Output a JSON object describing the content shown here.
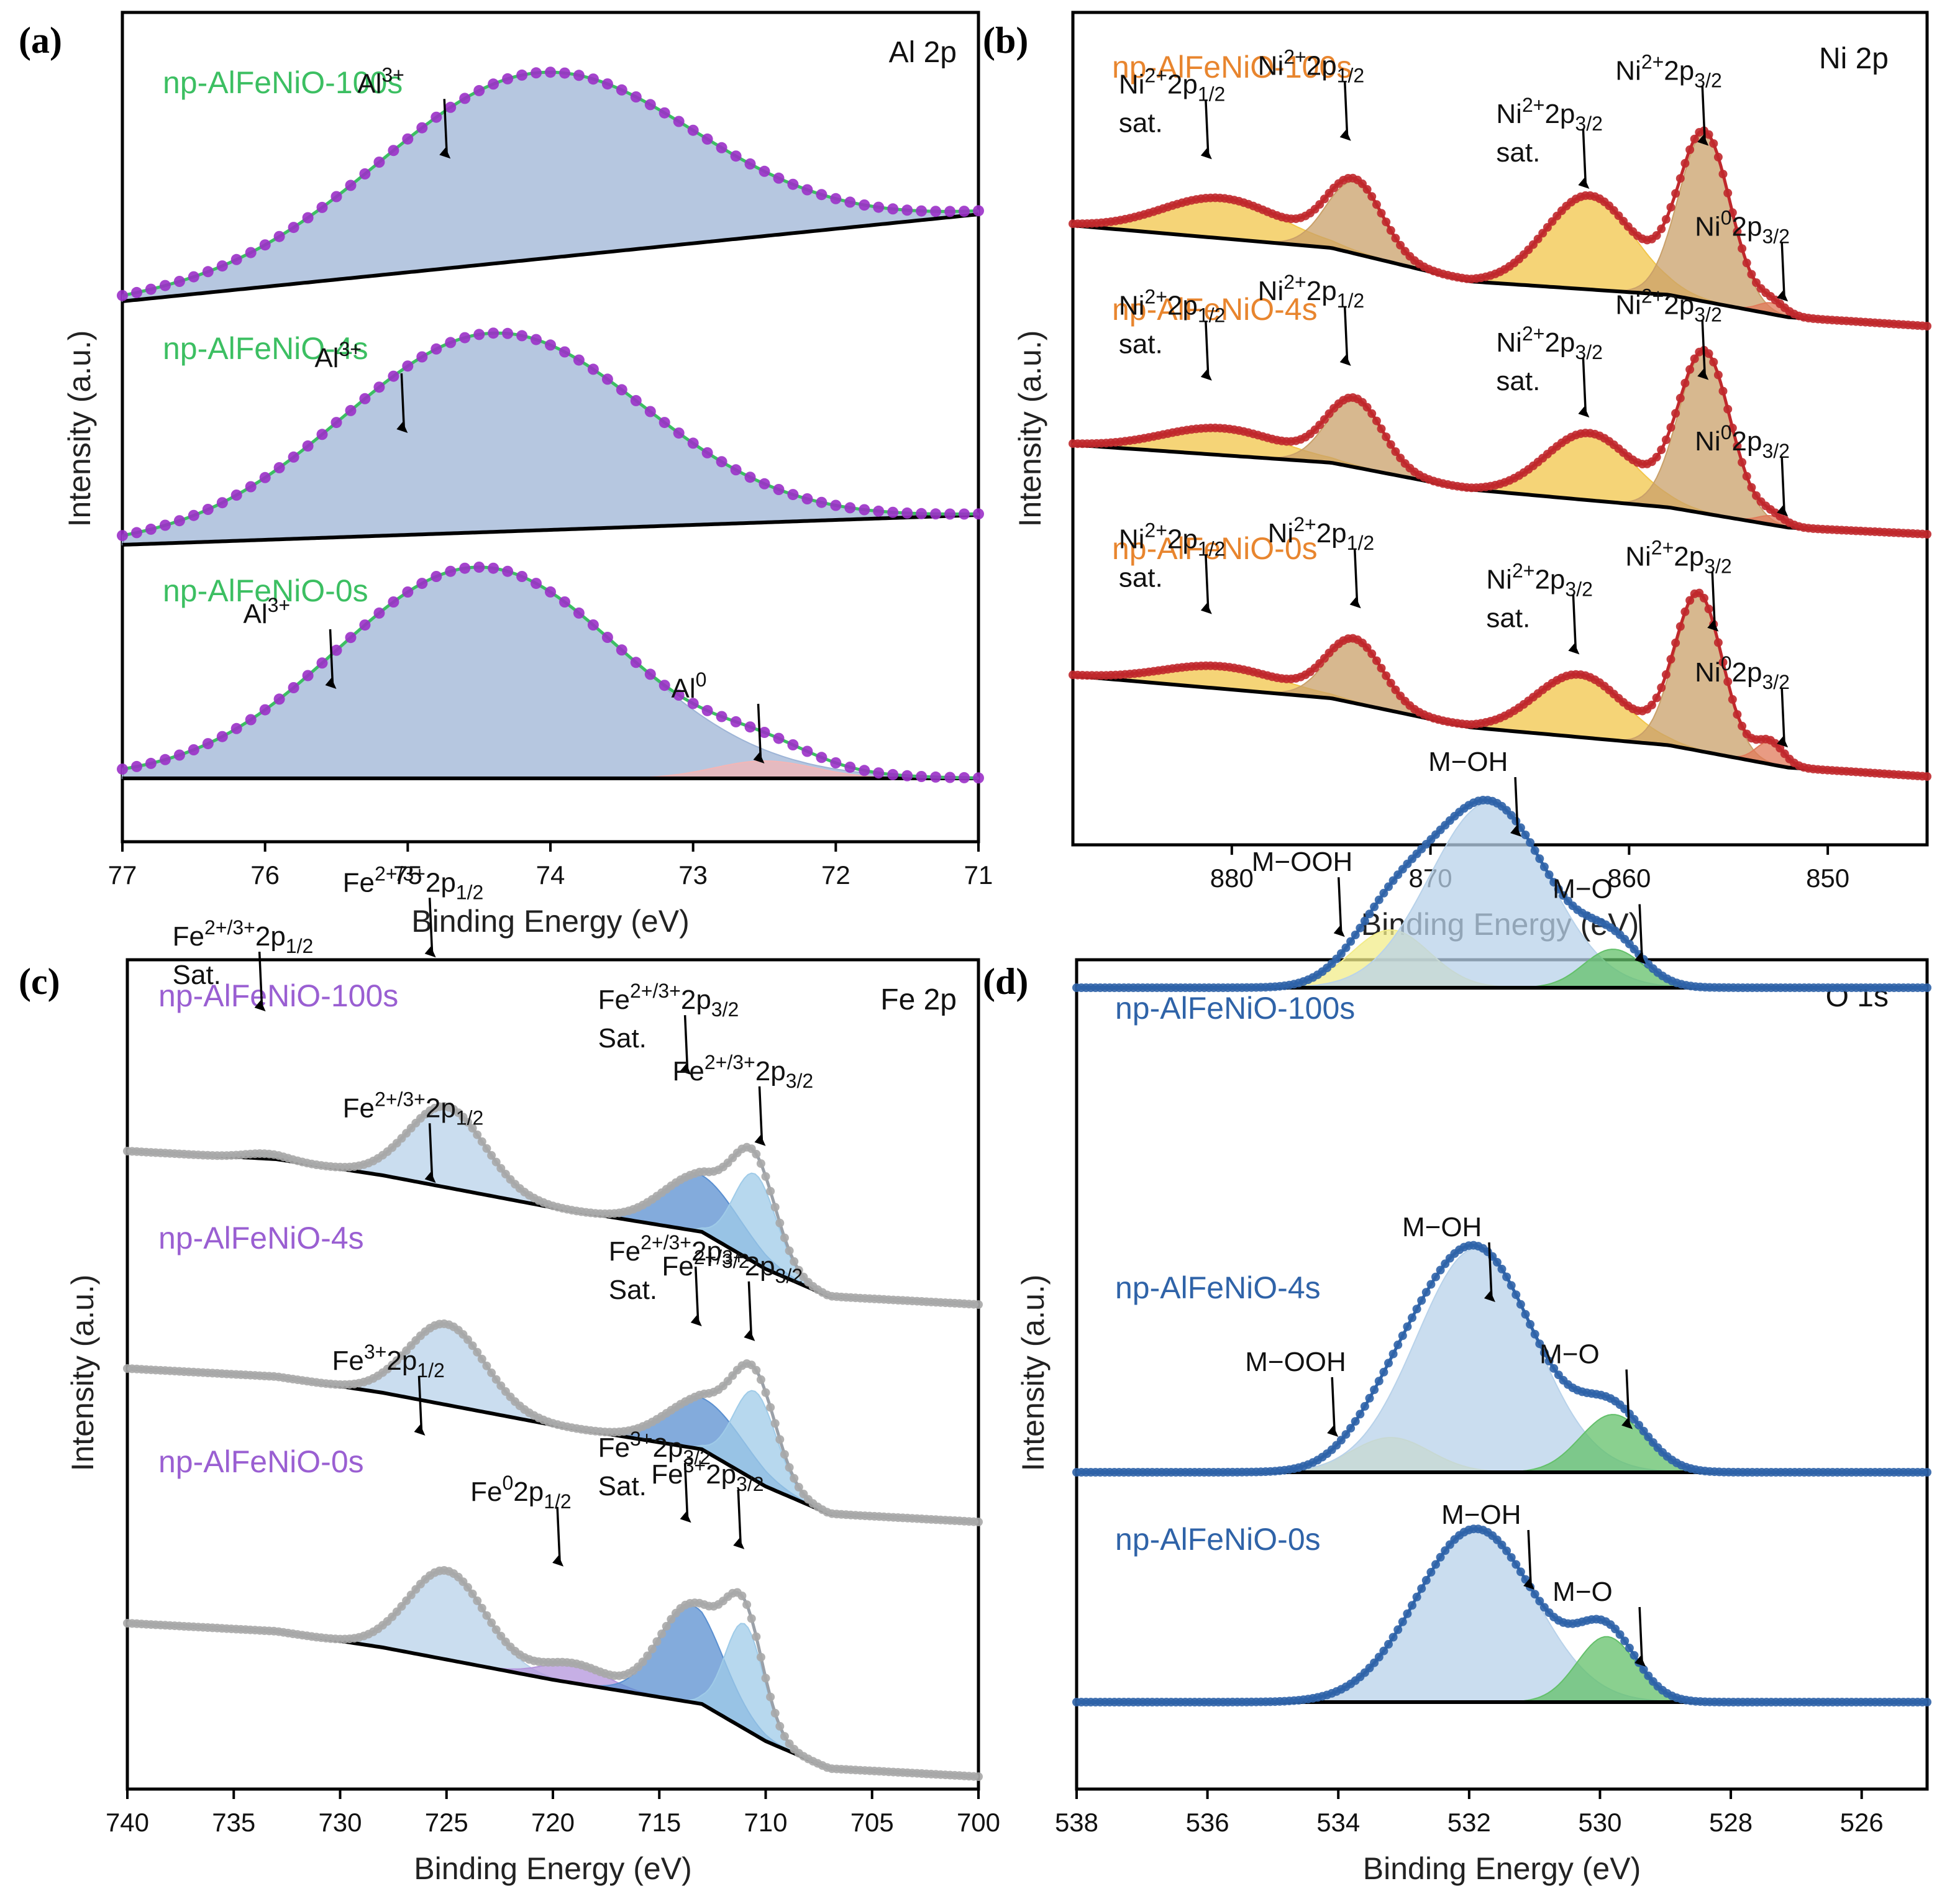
{
  "panel_labels": [
    "(a)",
    "(b)",
    "(c)",
    "(d)"
  ],
  "chart_data": [
    {
      "type": "line",
      "panel": "(a)",
      "title": "Al 2p",
      "xlabel": "Binding Energy (eV)",
      "ylabel": "Intensity (a.u.)",
      "xlim": [
        77,
        71
      ],
      "xticks": [
        77,
        76,
        75,
        74,
        73,
        72,
        71
      ],
      "marker_color": "#9b30c8",
      "fit_color": "#3cbf62",
      "label_color": "#3cbf62",
      "series": [
        {
          "name": "np-AlFeNiO-100s",
          "offset": 2.0,
          "baseline": [
            [
              77,
              0.0
            ],
            [
              71,
              0.35
            ]
          ],
          "components": [
            {
              "label": "Al3+",
              "center": 74.1,
              "height": 0.75,
              "width": 1.1,
              "color": "#9db4d6"
            }
          ],
          "annotations": [
            {
              "label": "Al3+",
              "x": 74.7,
              "y": 0.48
            }
          ]
        },
        {
          "name": "np-AlFeNiO-4s",
          "offset": 1.0,
          "baseline": [
            [
              77,
              0.0
            ],
            [
              71,
              0.12
            ]
          ],
          "components": [
            {
              "label": "Al3+",
              "center": 74.4,
              "height": 0.8,
              "width": 1.05,
              "color": "#9db4d6"
            }
          ],
          "annotations": [
            {
              "label": "Al3+",
              "x": 75.0,
              "y": 0.45
            }
          ]
        },
        {
          "name": "np-AlFeNiO-0s",
          "offset": 0.0,
          "baseline": [
            [
              77,
              0.0
            ],
            [
              71,
              0.0
            ]
          ],
          "components": [
            {
              "label": "Al3+",
              "center": 74.5,
              "height": 0.85,
              "width": 1.0,
              "color": "#9db4d6"
            },
            {
              "label": "Al0",
              "center": 72.5,
              "height": 0.07,
              "width": 0.35,
              "color": "#f4b6b6"
            }
          ],
          "annotations": [
            {
              "label": "Al3+",
              "x": 75.5,
              "y": 0.4
            },
            {
              "label": "Al0",
              "x": 72.5,
              "y": 0.1
            }
          ]
        }
      ]
    },
    {
      "type": "line",
      "panel": "(b)",
      "title": "Ni 2p",
      "xlabel": "Binding Energy (eV)",
      "ylabel": "Intensity (a.u.)",
      "xlim": [
        888,
        845
      ],
      "xticks": [
        880,
        870,
        860,
        850
      ],
      "marker_color": "#c0282c",
      "fit_color": "#c0282c",
      "label_color": "#e8852e",
      "series": [
        {
          "name": "np-AlFeNiO-100s",
          "offset": 2.0,
          "baseline": [
            [
              888,
              0.45
            ],
            [
              875,
              0.35
            ],
            [
              868,
              0.2
            ],
            [
              858,
              0.14
            ],
            [
              852,
              0.04
            ],
            [
              845,
              0.0
            ]
          ],
          "components": [
            {
              "label": "Ni2+ 2p1/2 sat.",
              "center": 880.5,
              "height": 0.18,
              "width": 3.0,
              "color": "#f2c64a"
            },
            {
              "label": "Ni2+ 2p1/2",
              "center": 873.8,
              "height": 0.32,
              "width": 1.4,
              "color": "#c9a06a"
            },
            {
              "label": "Ni2+ 2p3/2 sat.",
              "center": 862.0,
              "height": 0.42,
              "width": 2.2,
              "color": "#f2c64a"
            },
            {
              "label": "Ni2+ 2p3/2",
              "center": 856.2,
              "height": 0.75,
              "width": 1.3,
              "color": "#c9a06a"
            },
            {
              "label": "Ni0 2p3/2",
              "center": 852.8,
              "height": 0.05,
              "width": 0.7,
              "color": "#e07a5a"
            }
          ],
          "annotations": [
            {
              "label": "Ni2+2p1/2 sat.",
              "x": 881,
              "y": 0.4
            },
            {
              "label": "Ni2+2p1/2",
              "x": 874,
              "y": 0.55
            },
            {
              "label": "Ni2+2p3/2 sat.",
              "x": 862,
              "y": 0.5
            },
            {
              "label": "Ni2+2p3/2",
              "x": 856,
              "y": 0.75
            },
            {
              "label": "Ni02p3/2",
              "x": 852,
              "y": 0.12
            }
          ]
        },
        {
          "name": "np-AlFeNiO-4s",
          "offset": 1.0,
          "baseline": [
            [
              888,
              0.4
            ],
            [
              875,
              0.32
            ],
            [
              868,
              0.2
            ],
            [
              858,
              0.12
            ],
            [
              852,
              0.03
            ],
            [
              845,
              0.0
            ]
          ],
          "components": [
            {
              "label": "Ni2+ 2p1/2 sat.",
              "center": 880.5,
              "height": 0.12,
              "width": 3.0,
              "color": "#f2c64a"
            },
            {
              "label": "Ni2+ 2p1/2",
              "center": 873.8,
              "height": 0.3,
              "width": 1.4,
              "color": "#c9a06a"
            },
            {
              "label": "Ni2+ 2p3/2 sat.",
              "center": 862.0,
              "height": 0.3,
              "width": 2.2,
              "color": "#f2c64a"
            },
            {
              "label": "Ni2+ 2p3/2",
              "center": 856.2,
              "height": 0.72,
              "width": 1.3,
              "color": "#c9a06a"
            },
            {
              "label": "Ni0 2p3/2",
              "center": 852.8,
              "height": 0.04,
              "width": 0.7,
              "color": "#e07a5a"
            }
          ],
          "annotations": [
            {
              "label": "Ni2+2p1/2 sat.",
              "x": 881,
              "y": 0.38
            },
            {
              "label": "Ni2+2p1/2",
              "x": 874,
              "y": 0.5
            },
            {
              "label": "Ni2+2p3/2 sat.",
              "x": 862,
              "y": 0.42
            },
            {
              "label": "Ni2+2p3/2",
              "x": 856,
              "y": 0.65
            },
            {
              "label": "Ni02p3/2",
              "x": 852,
              "y": 0.1
            }
          ]
        },
        {
          "name": "np-AlFeNiO-0s",
          "offset": 0.0,
          "baseline": [
            [
              888,
              0.45
            ],
            [
              875,
              0.35
            ],
            [
              868,
              0.22
            ],
            [
              858,
              0.14
            ],
            [
              852,
              0.04
            ],
            [
              845,
              0.0
            ]
          ],
          "components": [
            {
              "label": "Ni2+ 2p1/2 sat.",
              "center": 880.5,
              "height": 0.1,
              "width": 3.0,
              "color": "#f2c64a"
            },
            {
              "label": "Ni2+ 2p1/2",
              "center": 873.8,
              "height": 0.28,
              "width": 1.4,
              "color": "#c9a06a"
            },
            {
              "label": "Ni2+ 2p3/2 sat.",
              "center": 862.5,
              "height": 0.28,
              "width": 2.2,
              "color": "#f2c64a"
            },
            {
              "label": "Ni2+ 2p3/2",
              "center": 856.5,
              "height": 0.7,
              "width": 1.2,
              "color": "#c9a06a"
            },
            {
              "label": "Ni0 2p3/2",
              "center": 852.9,
              "height": 0.1,
              "width": 0.7,
              "color": "#e07a5a"
            }
          ],
          "annotations": [
            {
              "label": "Ni2+2p1/2 sat.",
              "x": 881,
              "y": 0.38
            },
            {
              "label": "Ni2+2p1/2",
              "x": 873.5,
              "y": 0.48
            },
            {
              "label": "Ni2+2p3/2 sat.",
              "x": 862.5,
              "y": 0.42
            },
            {
              "label": "Ni2+2p3/2",
              "x": 855.5,
              "y": 0.6
            },
            {
              "label": "Ni02p3/2",
              "x": 852,
              "y": 0.14
            }
          ]
        }
      ]
    },
    {
      "type": "line",
      "panel": "(c)",
      "title": "Fe 2p",
      "xlabel": "Binding Energy (eV)",
      "ylabel": "Intensity (a.u.)",
      "xlim": [
        740,
        700
      ],
      "xticks": [
        740,
        735,
        730,
        725,
        720,
        715,
        710,
        705,
        700
      ],
      "marker_color": "#a8a8a8",
      "fit_color": "#9aa0a8",
      "label_color": "#9a5fd2",
      "series": [
        {
          "name": "np-AlFeNiO-100s",
          "offset": 2.0,
          "baseline": [
            [
              740,
              0.95
            ],
            [
              733,
              0.9
            ],
            [
              728,
              0.8
            ],
            [
              720,
              0.6
            ],
            [
              713,
              0.45
            ],
            [
              710,
              0.22
            ],
            [
              707,
              0.05
            ],
            [
              700,
              0.0
            ]
          ],
          "components": [
            {
              "label": "Fe2+/3+ 2p1/2 Sat.",
              "center": 733.5,
              "height": 0.03,
              "width": 1.0,
              "color": "#7fd8d8"
            },
            {
              "label": "Fe2+/3+ 2p1/2",
              "center": 725.0,
              "height": 0.5,
              "width": 1.8,
              "color": "#b8d2ea"
            },
            {
              "label": "Fe2+/3+ 2p3/2 Sat.",
              "center": 713.0,
              "height": 0.35,
              "width": 1.8,
              "color": "#5a8fd0"
            },
            {
              "label": "Fe2+/3+ 2p3/2",
              "center": 710.5,
              "height": 0.55,
              "width": 1.0,
              "color": "#9fcbe8"
            }
          ],
          "annotations": [
            {
              "label": "Fe2+/3+2p1/2 Sat.",
              "x": 733.5,
              "y": 1.0
            },
            {
              "label": "Fe2+/3+2p1/2",
              "x": 725.5,
              "y": 1.5
            },
            {
              "label": "Fe2+/3+2p3/2 Sat.",
              "x": 713.5,
              "y": 1.05
            },
            {
              "label": "Fe2+/3+2p3/2",
              "x": 710,
              "y": 0.85
            }
          ]
        },
        {
          "name": "np-AlFeNiO-4s",
          "offset": 1.0,
          "baseline": [
            [
              740,
              0.95
            ],
            [
              733,
              0.9
            ],
            [
              728,
              0.8
            ],
            [
              720,
              0.6
            ],
            [
              713,
              0.45
            ],
            [
              710,
              0.22
            ],
            [
              707,
              0.05
            ],
            [
              700,
              0.0
            ]
          ],
          "components": [
            {
              "label": "Fe2+/3+ 2p1/2",
              "center": 725.0,
              "height": 0.5,
              "width": 1.8,
              "color": "#b8d2ea"
            },
            {
              "label": "Fe2+/3+ 2p3/2 Sat.",
              "center": 712.8,
              "height": 0.32,
              "width": 1.8,
              "color": "#5a8fd0"
            },
            {
              "label": "Fe2+/3+ 2p3/2",
              "center": 710.5,
              "height": 0.55,
              "width": 1.0,
              "color": "#9fcbe8"
            }
          ],
          "annotations": [
            {
              "label": "Fe2+/3+2p1/2",
              "x": 725.5,
              "y": 1.45
            },
            {
              "label": "Fe2+/3+2p3/2 Sat.",
              "x": 713,
              "y": 0.85
            },
            {
              "label": "Fe2+/3+2p3/2",
              "x": 710.5,
              "y": 0.95
            }
          ]
        },
        {
          "name": "np-AlFeNiO-0s",
          "offset": 0.0,
          "baseline": [
            [
              740,
              0.95
            ],
            [
              733,
              0.9
            ],
            [
              728,
              0.8
            ],
            [
              720,
              0.6
            ],
            [
              713,
              0.45
            ],
            [
              710,
              0.22
            ],
            [
              707,
              0.05
            ],
            [
              700,
              0.0
            ]
          ],
          "components": [
            {
              "label": "Fe3+ 2p1/2",
              "center": 725.0,
              "height": 0.55,
              "width": 1.8,
              "color": "#b8d2ea"
            },
            {
              "label": "Fe0 2p1/2",
              "center": 719.0,
              "height": 0.12,
              "width": 1.5,
              "color": "#b394dc"
            },
            {
              "label": "Fe3+ 2p3/2 Sat.",
              "center": 713.5,
              "height": 0.6,
              "width": 1.5,
              "color": "#5a8fd0"
            },
            {
              "label": "Fe3+ 2p3/2",
              "center": 711.0,
              "height": 0.65,
              "width": 0.9,
              "color": "#9fcbe8"
            }
          ],
          "annotations": [
            {
              "label": "Fe3+2p1/2",
              "x": 726,
              "y": 1.45
            },
            {
              "label": "Fe02p1/2",
              "x": 719.5,
              "y": 0.8
            },
            {
              "label": "Fe3+2p3/2 Sat.",
              "x": 713.5,
              "y": 1.2
            },
            {
              "label": "Fe3+2p3/2",
              "x": 711,
              "y": 1.2
            }
          ]
        }
      ]
    },
    {
      "type": "line",
      "panel": "(d)",
      "title": "O 1s",
      "xlabel": "Binding Energy (eV)",
      "ylabel": "Intensity (a.u.)",
      "xlim": [
        538,
        525
      ],
      "xticks": [
        538,
        536,
        534,
        532,
        530,
        528,
        526
      ],
      "marker_color": "#2f63a8",
      "fit_color": "#2f63a8",
      "label_color": "#2f63a8",
      "series": [
        {
          "name": "np-AlFeNiO-100s",
          "offset": 2.0,
          "baseline": [
            [
              538,
              0.0
            ],
            [
              525,
              0.0
            ]
          ],
          "components": [
            {
              "label": "M-OOH",
              "center": 533.2,
              "height": 0.15,
              "width": 0.6,
              "color": "#f2ec8a"
            },
            {
              "label": "M-OH",
              "center": 531.7,
              "height": 0.48,
              "width": 0.9,
              "color": "#b8d2ea"
            },
            {
              "label": "M-O",
              "center": 529.8,
              "height": 0.1,
              "width": 0.45,
              "color": "#63c06a"
            }
          ],
          "annotations": [
            {
              "label": "M−OOH",
              "x": 533.9,
              "y": 0.14
            },
            {
              "label": "M−OH",
              "x": 531.2,
              "y": 0.4
            },
            {
              "label": "M−O",
              "x": 529.3,
              "y": 0.07
            }
          ]
        },
        {
          "name": "np-AlFeNiO-4s",
          "offset": 1.0,
          "baseline": [
            [
              538,
              0.0
            ],
            [
              525,
              0.0
            ]
          ],
          "components": [
            {
              "label": "M-OOH",
              "center": 533.2,
              "height": 0.09,
              "width": 0.6,
              "color": "#f2ec8a"
            },
            {
              "label": "M-OH",
              "center": 531.9,
              "height": 0.58,
              "width": 0.9,
              "color": "#b8d2ea"
            },
            {
              "label": "M-O",
              "center": 529.8,
              "height": 0.15,
              "width": 0.5,
              "color": "#63c06a"
            }
          ],
          "annotations": [
            {
              "label": "M−OOH",
              "x": 534.0,
              "y": 0.1
            },
            {
              "label": "M−OH",
              "x": 531.6,
              "y": 0.45
            },
            {
              "label": "M−O",
              "x": 529.5,
              "y": 0.12
            }
          ]
        },
        {
          "name": "np-AlFeNiO-0s",
          "offset": 0.0,
          "baseline": [
            [
              538,
              0.0
            ],
            [
              525,
              0.0
            ]
          ],
          "components": [
            {
              "label": "M-OH",
              "center": 531.9,
              "height": 0.45,
              "width": 0.9,
              "color": "#b8d2ea"
            },
            {
              "label": "M-O",
              "center": 529.9,
              "height": 0.17,
              "width": 0.45,
              "color": "#63c06a"
            }
          ],
          "annotations": [
            {
              "label": "M−OH",
              "x": 531.0,
              "y": 0.3
            },
            {
              "label": "M−O",
              "x": 529.3,
              "y": 0.1
            }
          ]
        }
      ]
    }
  ]
}
